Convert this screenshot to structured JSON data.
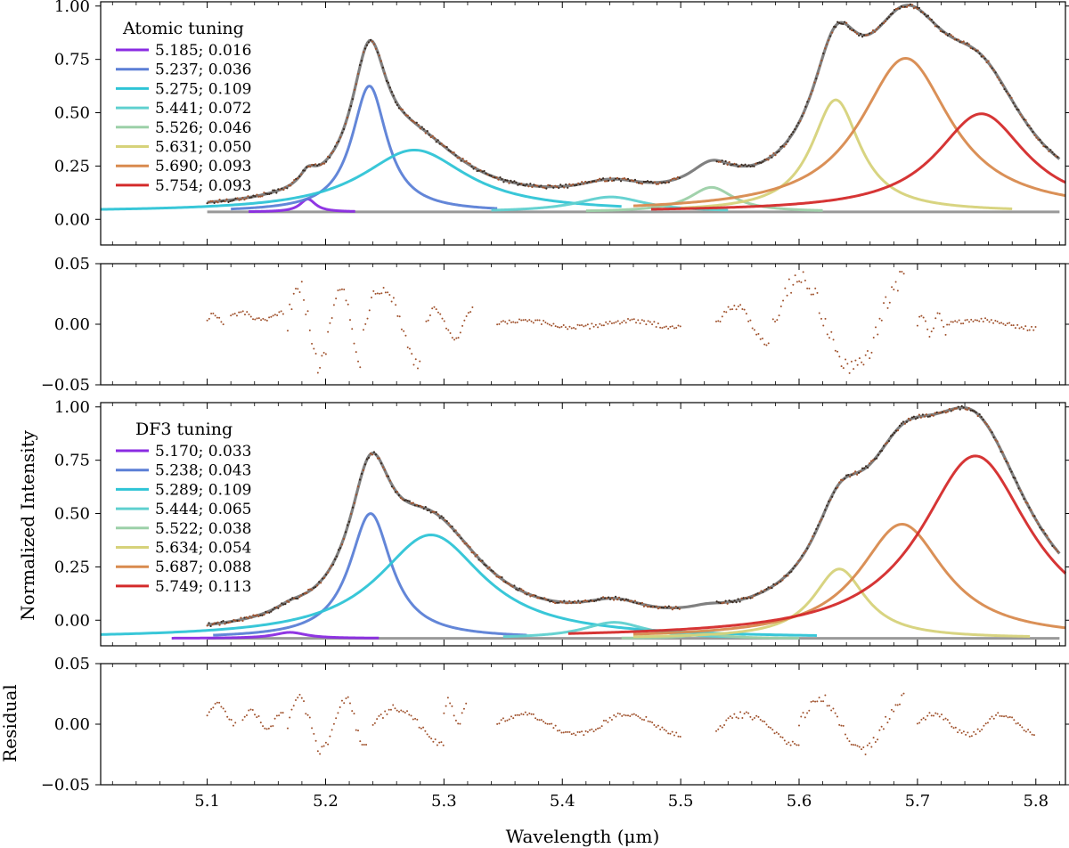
{
  "figure": {
    "ylabel_main": "Normalized Intensity",
    "ylabel_resid": "Residual",
    "xlabel": "Wavelength (μm)",
    "xlim": [
      5.01,
      5.825
    ],
    "xticks": [
      5.1,
      5.2,
      5.3,
      5.4,
      5.5,
      5.6,
      5.7,
      5.8
    ],
    "xtick_labels": [
      "5.1",
      "5.2",
      "5.3",
      "5.4",
      "5.5",
      "5.6",
      "5.7",
      "5.8"
    ],
    "colors": {
      "model": "#808080",
      "baseline": "#999999",
      "data": "#a0522d",
      "data_fill": "#3a2a20",
      "components": [
        "#8a2be2",
        "#5b7fd6",
        "#2ec4d6",
        "#5fd0cf",
        "#9cd0a8",
        "#d6d27a",
        "#d88a4e",
        "#d42a2a"
      ]
    }
  },
  "chart_data": [
    {
      "type": "line",
      "title": "Atomic tuning",
      "ylabel": "Normalized Intensity",
      "xlabel": "",
      "ylim": [
        -0.12,
        1.02
      ],
      "yticks": [
        0.0,
        0.25,
        0.5,
        0.75,
        1.0
      ],
      "ytick_labels": [
        "0.00",
        "0.25",
        "0.50",
        "0.75",
        "1.00"
      ],
      "legend_position": "top-left",
      "baseline": 0.035,
      "model_range": [
        5.1,
        5.82
      ],
      "series": [
        {
          "name": "5.185; 0.016",
          "center": 5.185,
          "fwhm": 0.016,
          "amplitude": 0.06,
          "xrange": [
            5.135,
            5.225
          ]
        },
        {
          "name": "5.237; 0.036",
          "center": 5.237,
          "fwhm": 0.036,
          "amplitude": 0.59,
          "xrange": [
            5.12,
            5.345
          ]
        },
        {
          "name": "5.275; 0.109",
          "center": 5.275,
          "fwhm": 0.109,
          "amplitude": 0.29,
          "xrange": [
            5.01,
            5.45
          ]
        },
        {
          "name": "5.441; 0.072",
          "center": 5.441,
          "fwhm": 0.072,
          "amplitude": 0.07,
          "xrange": [
            5.34,
            5.54
          ]
        },
        {
          "name": "5.526; 0.046",
          "center": 5.526,
          "fwhm": 0.046,
          "amplitude": 0.115,
          "xrange": [
            5.42,
            5.62
          ]
        },
        {
          "name": "5.631; 0.050",
          "center": 5.631,
          "fwhm": 0.05,
          "amplitude": 0.525,
          "xrange": [
            5.5,
            5.78
          ]
        },
        {
          "name": "5.690; 0.093",
          "center": 5.69,
          "fwhm": 0.093,
          "amplitude": 0.72,
          "xrange": [
            5.46,
            5.825
          ]
        },
        {
          "name": "5.754; 0.093",
          "center": 5.754,
          "fwhm": 0.093,
          "amplitude": 0.46,
          "xrange": [
            5.475,
            5.825
          ]
        }
      ]
    },
    {
      "type": "scatter",
      "title": "",
      "ylabel": "",
      "xlabel": "",
      "ylim": [
        -0.05,
        0.05
      ],
      "yticks": [
        -0.05,
        0.0,
        0.05
      ],
      "ytick_labels": [
        "−0.05",
        "0.00",
        "0.05"
      ],
      "segments": [
        {
          "x": [
            5.1,
            5.115
          ],
          "amp": 0.005,
          "offset": 0.004
        },
        {
          "x": [
            5.12,
            5.165
          ],
          "amp": 0.004,
          "offset": 0.006
        },
        {
          "x": [
            5.168,
            5.23
          ],
          "amp": 0.04,
          "offset": 0.0
        },
        {
          "x": [
            5.232,
            5.28
          ],
          "amp": 0.038,
          "offset": 0.0
        },
        {
          "x": [
            5.285,
            5.325
          ],
          "amp": 0.015,
          "offset": 0.0
        },
        {
          "x": [
            5.345,
            5.5
          ],
          "amp": 0.003,
          "offset": 0.0
        },
        {
          "x": [
            5.53,
            5.575
          ],
          "amp": 0.018,
          "offset": 0.0
        },
        {
          "x": [
            5.578,
            5.69
          ],
          "amp": 0.045,
          "offset": 0.0
        },
        {
          "x": [
            5.7,
            5.725
          ],
          "amp": 0.01,
          "offset": 0.0
        },
        {
          "x": [
            5.725,
            5.8
          ],
          "amp": 0.004,
          "offset": 0.0
        }
      ]
    },
    {
      "type": "line",
      "title": "DF3 tuning",
      "ylabel": "Normalized Intensity",
      "xlabel": "",
      "ylim": [
        -0.12,
        1.02
      ],
      "yticks": [
        0.0,
        0.25,
        0.5,
        0.75,
        1.0
      ],
      "ytick_labels": [
        "0.00",
        "0.25",
        "0.50",
        "0.75",
        "1.00"
      ],
      "legend_position": "top-left",
      "baseline": -0.085,
      "model_range": [
        5.1,
        5.82
      ],
      "series": [
        {
          "name": "5.170; 0.033",
          "center": 5.17,
          "fwhm": 0.033,
          "amplitude": 0.028,
          "xrange": [
            5.07,
            5.245
          ]
        },
        {
          "name": "5.238; 0.043",
          "center": 5.238,
          "fwhm": 0.043,
          "amplitude": 0.585,
          "xrange": [
            5.105,
            5.37
          ]
        },
        {
          "name": "5.289; 0.109",
          "center": 5.289,
          "fwhm": 0.109,
          "amplitude": 0.485,
          "xrange": [
            5.01,
            5.615
          ]
        },
        {
          "name": "5.444; 0.065",
          "center": 5.444,
          "fwhm": 0.065,
          "amplitude": 0.075,
          "xrange": [
            5.35,
            5.555
          ]
        },
        {
          "name": "5.522; 0.038",
          "center": 5.522,
          "fwhm": 0.038,
          "amplitude": 0.02,
          "xrange": [
            5.45,
            5.6
          ]
        },
        {
          "name": "5.634; 0.054",
          "center": 5.634,
          "fwhm": 0.054,
          "amplitude": 0.325,
          "xrange": [
            5.46,
            5.795
          ]
        },
        {
          "name": "5.687; 0.088",
          "center": 5.687,
          "fwhm": 0.088,
          "amplitude": 0.535,
          "xrange": [
            5.46,
            5.825
          ]
        },
        {
          "name": "5.749; 0.113",
          "center": 5.749,
          "fwhm": 0.113,
          "amplitude": 0.855,
          "xrange": [
            5.405,
            5.825
          ]
        }
      ]
    },
    {
      "type": "scatter",
      "title": "",
      "ylabel": "Residual",
      "xlabel": "Wavelength (μm)",
      "ylim": [
        -0.05,
        0.05
      ],
      "yticks": [
        -0.05,
        0.0,
        0.05
      ],
      "ytick_labels": [
        "−0.05",
        "0.00",
        "0.05"
      ],
      "segments": [
        {
          "x": [
            5.1,
            5.125
          ],
          "amp": 0.01,
          "offset": 0.008
        },
        {
          "x": [
            5.13,
            5.165
          ],
          "amp": 0.008,
          "offset": 0.004
        },
        {
          "x": [
            5.168,
            5.235
          ],
          "amp": 0.025,
          "offset": 0.0
        },
        {
          "x": [
            5.24,
            5.3
          ],
          "amp": 0.018,
          "offset": -0.002
        },
        {
          "x": [
            5.3,
            5.32
          ],
          "amp": 0.012,
          "offset": 0.01
        },
        {
          "x": [
            5.345,
            5.5
          ],
          "amp": 0.01,
          "offset": 0.0
        },
        {
          "x": [
            5.53,
            5.6
          ],
          "amp": 0.015,
          "offset": -0.005
        },
        {
          "x": [
            5.6,
            5.69
          ],
          "amp": 0.025,
          "offset": 0.0
        },
        {
          "x": [
            5.7,
            5.8
          ],
          "amp": 0.01,
          "offset": 0.0
        }
      ]
    }
  ]
}
